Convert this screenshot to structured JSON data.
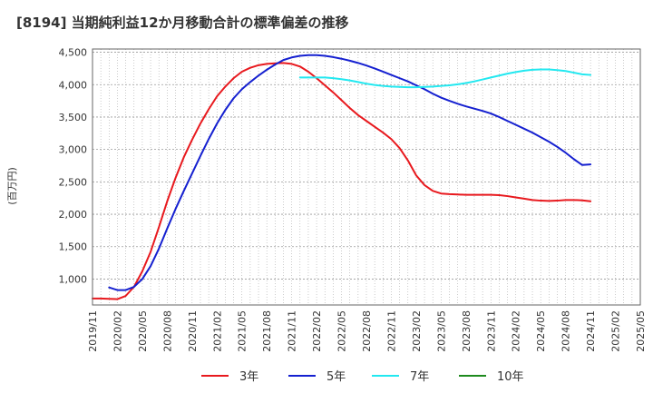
{
  "chart_data": {
    "type": "line",
    "title": "[8194]  当期純利益12か月移動合計の標準偏差の推移",
    "ylabel": "(百万円)",
    "xlabel": "",
    "ylim": [
      600,
      4550
    ],
    "yticks": [
      1000,
      1500,
      2000,
      2500,
      3000,
      3500,
      4000,
      4500
    ],
    "ytick_labels": [
      "1,000",
      "1,500",
      "2,000",
      "2,500",
      "3,000",
      "3,500",
      "4,000",
      "4,500"
    ],
    "x_range": [
      "2019/11",
      "2025/05"
    ],
    "xtick_labels": [
      "2019/11",
      "2020/02",
      "2020/05",
      "2020/08",
      "2020/11",
      "2021/02",
      "2021/05",
      "2021/08",
      "2021/11",
      "2022/02",
      "2022/05",
      "2022/08",
      "2022/11",
      "2023/02",
      "2023/05",
      "2023/08",
      "2023/11",
      "2024/02",
      "2024/05",
      "2024/08",
      "2024/11",
      "2025/02",
      "2025/05"
    ],
    "grid": true,
    "legend_position": "bottom",
    "series": [
      {
        "name": "3年",
        "color": "#e8191e",
        "points": [
          [
            "2019/11",
            700
          ],
          [
            "2019/12",
            700
          ],
          [
            "2020/01",
            695
          ],
          [
            "2020/02",
            690
          ],
          [
            "2020/03",
            740
          ],
          [
            "2020/04",
            880
          ],
          [
            "2020/05",
            1120
          ],
          [
            "2020/06",
            1420
          ],
          [
            "2020/07",
            1800
          ],
          [
            "2020/08",
            2200
          ],
          [
            "2020/09",
            2560
          ],
          [
            "2020/10",
            2880
          ],
          [
            "2020/11",
            3150
          ],
          [
            "2020/12",
            3400
          ],
          [
            "2021/01",
            3620
          ],
          [
            "2021/02",
            3820
          ],
          [
            "2021/03",
            3970
          ],
          [
            "2021/04",
            4100
          ],
          [
            "2021/05",
            4200
          ],
          [
            "2021/06",
            4260
          ],
          [
            "2021/07",
            4300
          ],
          [
            "2021/08",
            4320
          ],
          [
            "2021/09",
            4330
          ],
          [
            "2021/10",
            4335
          ],
          [
            "2021/11",
            4320
          ],
          [
            "2021/12",
            4280
          ],
          [
            "2022/01",
            4200
          ],
          [
            "2022/02",
            4100
          ],
          [
            "2022/03",
            3990
          ],
          [
            "2022/04",
            3880
          ],
          [
            "2022/05",
            3760
          ],
          [
            "2022/06",
            3640
          ],
          [
            "2022/07",
            3530
          ],
          [
            "2022/08",
            3440
          ],
          [
            "2022/09",
            3350
          ],
          [
            "2022/10",
            3260
          ],
          [
            "2022/11",
            3160
          ],
          [
            "2022/12",
            3020
          ],
          [
            "2023/01",
            2830
          ],
          [
            "2023/02",
            2600
          ],
          [
            "2023/03",
            2450
          ],
          [
            "2023/04",
            2360
          ],
          [
            "2023/05",
            2320
          ],
          [
            "2023/06",
            2310
          ],
          [
            "2023/07",
            2305
          ],
          [
            "2023/08",
            2300
          ],
          [
            "2023/09",
            2300
          ],
          [
            "2023/10",
            2300
          ],
          [
            "2023/11",
            2300
          ],
          [
            "2023/12",
            2295
          ],
          [
            "2024/01",
            2280
          ],
          [
            "2024/02",
            2260
          ],
          [
            "2024/03",
            2240
          ],
          [
            "2024/04",
            2220
          ],
          [
            "2024/05",
            2210
          ],
          [
            "2024/06",
            2205
          ],
          [
            "2024/07",
            2210
          ],
          [
            "2024/08",
            2220
          ],
          [
            "2024/09",
            2220
          ],
          [
            "2024/10",
            2215
          ],
          [
            "2024/11",
            2200
          ]
        ]
      },
      {
        "name": "5年",
        "color": "#1520d0",
        "points": [
          [
            "2020/01",
            870
          ],
          [
            "2020/02",
            830
          ],
          [
            "2020/03",
            830
          ],
          [
            "2020/04",
            880
          ],
          [
            "2020/05",
            1000
          ],
          [
            "2020/06",
            1200
          ],
          [
            "2020/07",
            1470
          ],
          [
            "2020/08",
            1780
          ],
          [
            "2020/09",
            2080
          ],
          [
            "2020/10",
            2360
          ],
          [
            "2020/11",
            2630
          ],
          [
            "2020/12",
            2900
          ],
          [
            "2021/01",
            3160
          ],
          [
            "2021/02",
            3400
          ],
          [
            "2021/03",
            3610
          ],
          [
            "2021/04",
            3790
          ],
          [
            "2021/05",
            3930
          ],
          [
            "2021/06",
            4040
          ],
          [
            "2021/07",
            4140
          ],
          [
            "2021/08",
            4230
          ],
          [
            "2021/09",
            4310
          ],
          [
            "2021/10",
            4380
          ],
          [
            "2021/11",
            4420
          ],
          [
            "2021/12",
            4445
          ],
          [
            "2022/01",
            4455
          ],
          [
            "2022/02",
            4455
          ],
          [
            "2022/03",
            4445
          ],
          [
            "2022/04",
            4425
          ],
          [
            "2022/05",
            4400
          ],
          [
            "2022/06",
            4370
          ],
          [
            "2022/07",
            4335
          ],
          [
            "2022/08",
            4295
          ],
          [
            "2022/09",
            4250
          ],
          [
            "2022/10",
            4200
          ],
          [
            "2022/11",
            4150
          ],
          [
            "2022/12",
            4100
          ],
          [
            "2023/01",
            4050
          ],
          [
            "2023/02",
            3990
          ],
          [
            "2023/03",
            3930
          ],
          [
            "2023/04",
            3860
          ],
          [
            "2023/05",
            3800
          ],
          [
            "2023/06",
            3750
          ],
          [
            "2023/07",
            3705
          ],
          [
            "2023/08",
            3665
          ],
          [
            "2023/09",
            3630
          ],
          [
            "2023/10",
            3595
          ],
          [
            "2023/11",
            3555
          ],
          [
            "2023/12",
            3500
          ],
          [
            "2024/01",
            3440
          ],
          [
            "2024/02",
            3380
          ],
          [
            "2024/03",
            3320
          ],
          [
            "2024/04",
            3260
          ],
          [
            "2024/05",
            3190
          ],
          [
            "2024/06",
            3120
          ],
          [
            "2024/07",
            3040
          ],
          [
            "2024/08",
            2950
          ],
          [
            "2024/09",
            2850
          ],
          [
            "2024/10",
            2760
          ],
          [
            "2024/11",
            2770
          ]
        ]
      },
      {
        "name": "7年",
        "color": "#22e8f0",
        "points": [
          [
            "2021/12",
            4110
          ],
          [
            "2022/01",
            4110
          ],
          [
            "2022/02",
            4110
          ],
          [
            "2022/03",
            4110
          ],
          [
            "2022/04",
            4100
          ],
          [
            "2022/05",
            4085
          ],
          [
            "2022/06",
            4065
          ],
          [
            "2022/07",
            4040
          ],
          [
            "2022/08",
            4015
          ],
          [
            "2022/09",
            3995
          ],
          [
            "2022/10",
            3980
          ],
          [
            "2022/11",
            3970
          ],
          [
            "2022/12",
            3965
          ],
          [
            "2023/01",
            3960
          ],
          [
            "2023/02",
            3960
          ],
          [
            "2023/03",
            3965
          ],
          [
            "2023/04",
            3970
          ],
          [
            "2023/05",
            3980
          ],
          [
            "2023/06",
            3990
          ],
          [
            "2023/07",
            4005
          ],
          [
            "2023/08",
            4025
          ],
          [
            "2023/09",
            4050
          ],
          [
            "2023/10",
            4080
          ],
          [
            "2023/11",
            4110
          ],
          [
            "2023/12",
            4140
          ],
          [
            "2024/01",
            4170
          ],
          [
            "2024/02",
            4195
          ],
          [
            "2024/03",
            4215
          ],
          [
            "2024/04",
            4230
          ],
          [
            "2024/05",
            4235
          ],
          [
            "2024/06",
            4235
          ],
          [
            "2024/07",
            4225
          ],
          [
            "2024/08",
            4210
          ],
          [
            "2024/09",
            4185
          ],
          [
            "2024/10",
            4160
          ],
          [
            "2024/11",
            4150
          ]
        ]
      },
      {
        "name": "10年",
        "color": "#1e8a1e",
        "points": []
      }
    ]
  }
}
